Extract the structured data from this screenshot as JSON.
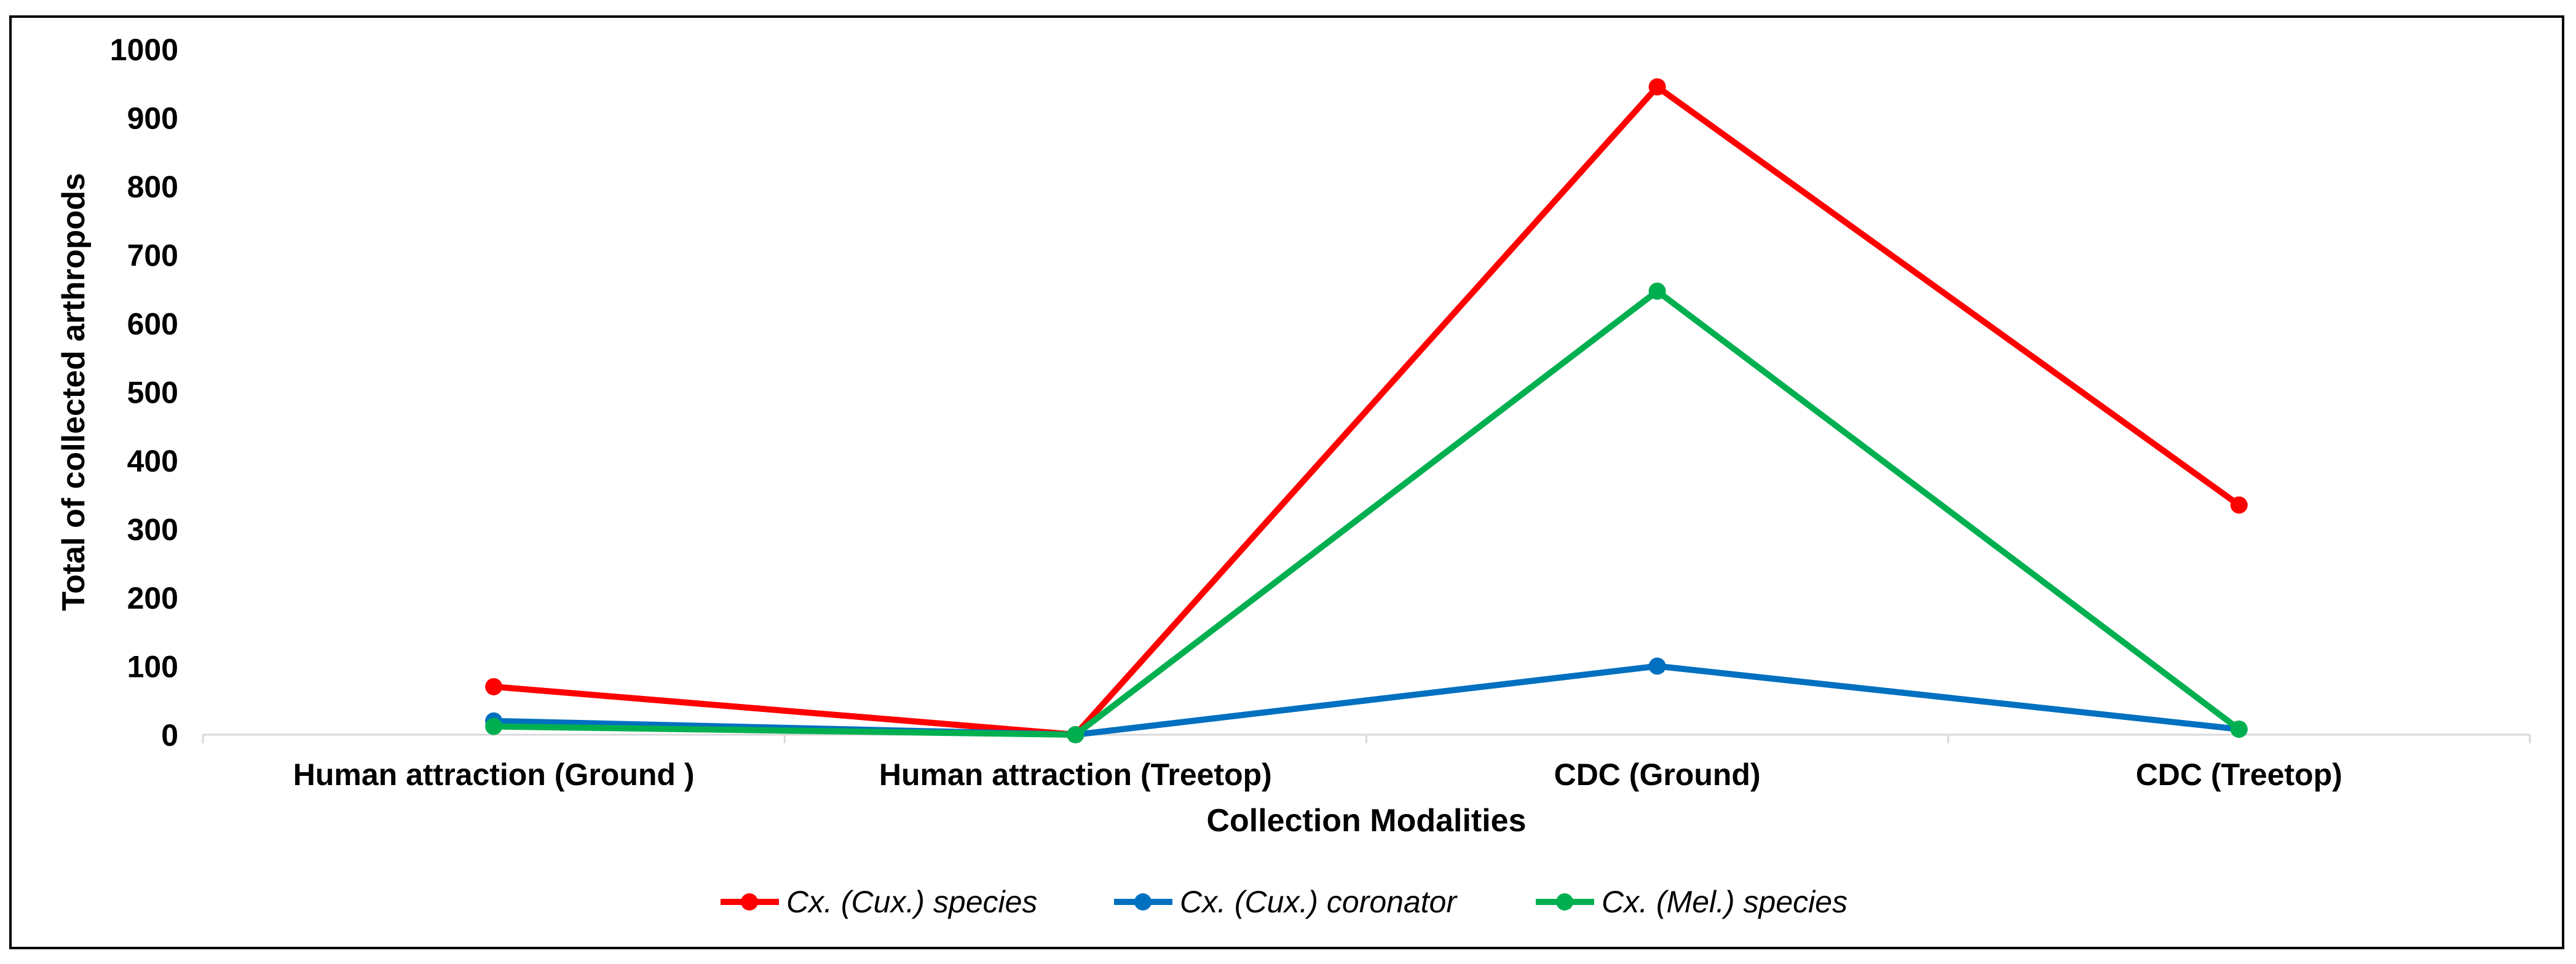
{
  "chart_data": {
    "type": "line",
    "categories": [
      "Human attraction (Ground )",
      "Human attraction (Treetop)",
      "CDC (Ground)",
      "CDC (Treetop)"
    ],
    "series": [
      {
        "name": "Cx. (Cux.) species",
        "color": "#ff0000",
        "values": [
          70,
          0,
          945,
          335
        ]
      },
      {
        "name": "Cx. (Cux.) coronator",
        "color": "#0070c0",
        "values": [
          20,
          0,
          100,
          8
        ]
      },
      {
        "name": "Cx. (Mel.) species",
        "color": "#00b050",
        "values": [
          12,
          0,
          647,
          8
        ]
      }
    ],
    "xlabel": "Collection Modalities",
    "ylabel": "Total of collected arthropods",
    "ylim": [
      0,
      1000
    ],
    "yticks": [
      0,
      100,
      200,
      300,
      400,
      500,
      600,
      700,
      800,
      900,
      1000
    ],
    "grid": false,
    "legend_position": "bottom"
  }
}
